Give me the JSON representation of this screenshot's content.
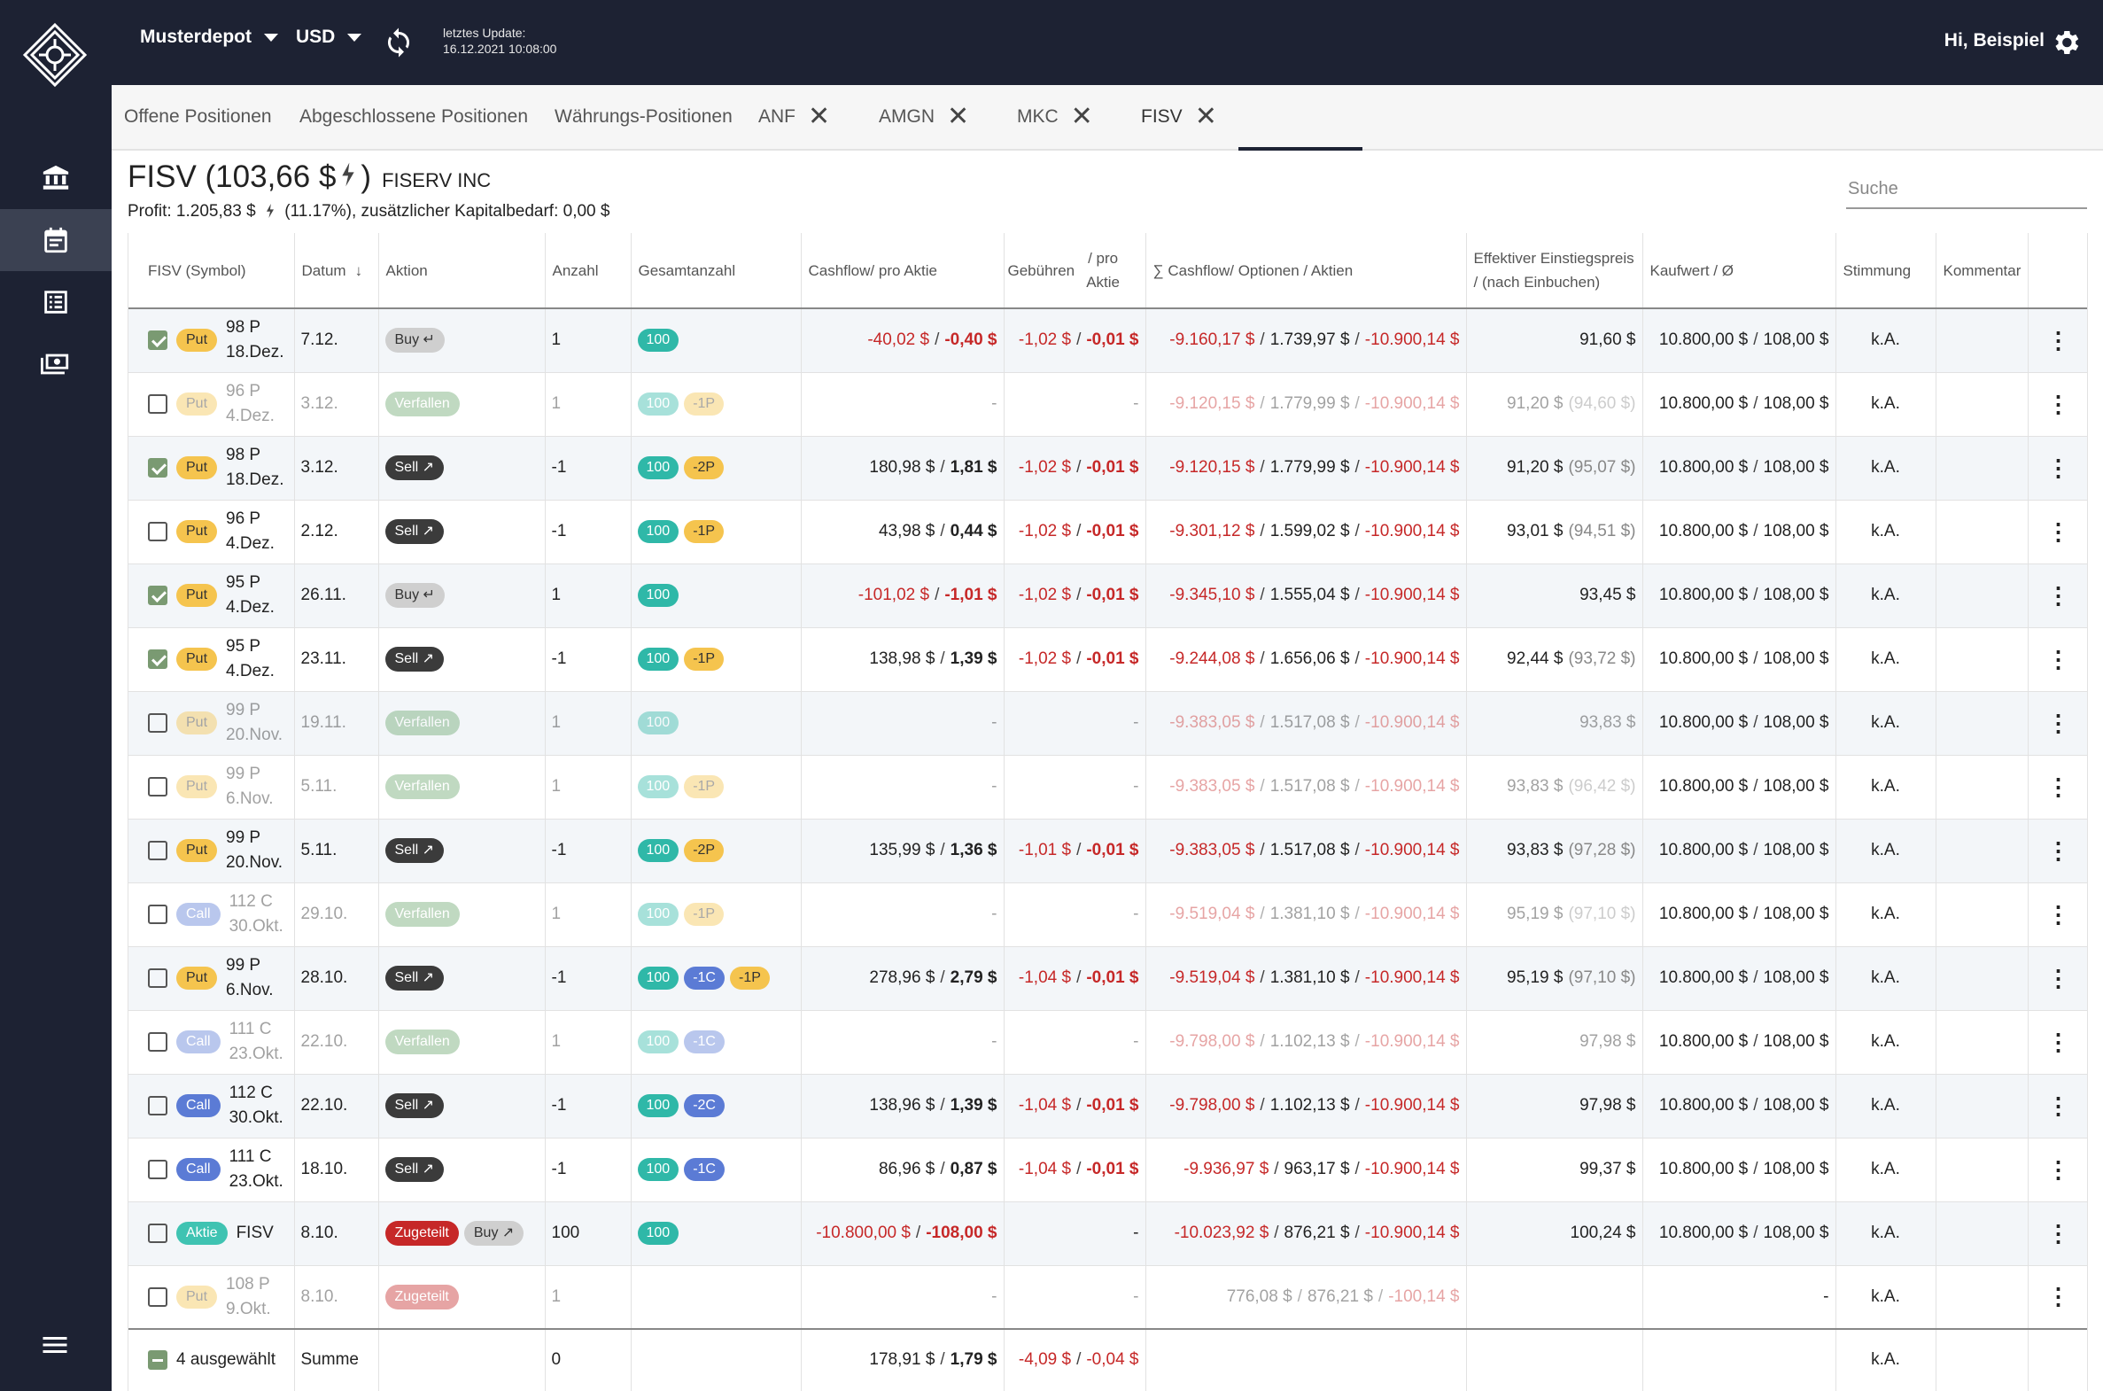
{
  "topbar": {
    "depot": "Musterdepot",
    "currency": "USD",
    "update_label": "letztes Update:",
    "update_time": "16.12.2021 10:08:00",
    "greeting": "Hi, Beispiel"
  },
  "tabs": [
    {
      "label": "Offene Positionen"
    },
    {
      "label": "Abgeschlossene Positionen"
    },
    {
      "label": "Währungs-Positionen"
    },
    {
      "label": "ANF"
    },
    {
      "label": "AMGN"
    },
    {
      "label": "MKC"
    },
    {
      "label": "FISV"
    }
  ],
  "header": {
    "symbol_price": "FISV (103,66 $",
    "paren_close": ")",
    "company": "FISERV INC",
    "profit_prefix": "Profit: 1.205,83 $",
    "profit_suffix": "(11.17%), zusätzlicher Kapitalbedarf: 0,00 $",
    "search_placeholder": "Suche"
  },
  "columns": {
    "symbol": "FISV (Symbol)",
    "datum": "Datum",
    "aktion": "Aktion",
    "anzahl": "Anzahl",
    "gesamtanzahl": "Gesamtanzahl",
    "cashflow": "Cashflow/ pro Aktie",
    "gebuehren_a": "Gebühren",
    "gebuehren_b": "/ pro Aktie",
    "sum_cashflow": "∑ Cashflow/ Optionen / Aktien",
    "effektiv": "Effektiver Einstiegspreis / (nach Einbuchen)",
    "kaufwert": "Kaufwert / Ø",
    "stimmung": "Stimmung",
    "kommentar": "Kommentar"
  },
  "rows": [
    {
      "checked": true,
      "faded": false,
      "type": "Put",
      "l1": "98 P",
      "l2": "18.Dez.",
      "date": "7.12.",
      "actions": [
        {
          "k": "buy",
          "t": "Buy ↵"
        }
      ],
      "qty": "1",
      "counts": [
        {
          "c": "teal",
          "t": "100"
        }
      ],
      "cf": "-40,02 $",
      "cf_neg": true,
      "cfp": "-0,40 $",
      "cfp_neg": true,
      "fee": "-1,02 $",
      "feep": "-0,01 $",
      "s1": "-9.160,17 $",
      "s1_neg": true,
      "s2": "1.739,97 $",
      "s3": "-10.900,14 $",
      "eff": "91,60 $",
      "eff2": "",
      "kw": "10.800,00 $",
      "kw2": "108,00 $",
      "stim": "k.A."
    },
    {
      "checked": false,
      "faded": true,
      "type": "Put",
      "l1": "96 P",
      "l2": "4.Dez.",
      "date": "3.12.",
      "actions": [
        {
          "k": "verf",
          "t": "Verfallen"
        }
      ],
      "qty": "1",
      "counts": [
        {
          "c": "teal",
          "t": "100"
        },
        {
          "c": "yel",
          "t": "-1P"
        }
      ],
      "cf": "-",
      "cf_neg": false,
      "cfp": "",
      "cfp_neg": false,
      "fee": "-",
      "feep": "",
      "s1": "-9.120,15 $",
      "s1_neg": true,
      "s2": "1.779,99 $",
      "s3": "-10.900,14 $",
      "eff": "91,20 $",
      "eff2": "(94,60 $)",
      "kw": "10.800,00 $",
      "kw2": "108,00 $",
      "stim": "k.A."
    },
    {
      "checked": true,
      "faded": false,
      "type": "Put",
      "l1": "98 P",
      "l2": "18.Dez.",
      "date": "3.12.",
      "actions": [
        {
          "k": "sell",
          "t": "Sell ↗"
        }
      ],
      "qty": "-1",
      "counts": [
        {
          "c": "teal",
          "t": "100"
        },
        {
          "c": "yel",
          "t": "-2P"
        }
      ],
      "cf": "180,98 $",
      "cf_neg": false,
      "cfp": "1,81 $",
      "cfp_neg": false,
      "fee": "-1,02 $",
      "feep": "-0,01 $",
      "s1": "-9.120,15 $",
      "s1_neg": true,
      "s2": "1.779,99 $",
      "s3": "-10.900,14 $",
      "eff": "91,20 $",
      "eff2": "(95,07 $)",
      "kw": "10.800,00 $",
      "kw2": "108,00 $",
      "stim": "k.A."
    },
    {
      "checked": false,
      "faded": false,
      "type": "Put",
      "l1": "96 P",
      "l2": "4.Dez.",
      "date": "2.12.",
      "actions": [
        {
          "k": "sell",
          "t": "Sell ↗"
        }
      ],
      "qty": "-1",
      "counts": [
        {
          "c": "teal",
          "t": "100"
        },
        {
          "c": "yel",
          "t": "-1P"
        }
      ],
      "cf": "43,98 $",
      "cf_neg": false,
      "cfp": "0,44 $",
      "cfp_neg": false,
      "fee": "-1,02 $",
      "feep": "-0,01 $",
      "s1": "-9.301,12 $",
      "s1_neg": true,
      "s2": "1.599,02 $",
      "s3": "-10.900,14 $",
      "eff": "93,01 $",
      "eff2": "(94,51 $)",
      "kw": "10.800,00 $",
      "kw2": "108,00 $",
      "stim": "k.A."
    },
    {
      "checked": true,
      "faded": false,
      "type": "Put",
      "l1": "95 P",
      "l2": "4.Dez.",
      "date": "26.11.",
      "actions": [
        {
          "k": "buy",
          "t": "Buy ↵"
        }
      ],
      "qty": "1",
      "counts": [
        {
          "c": "teal",
          "t": "100"
        }
      ],
      "cf": "-101,02 $",
      "cf_neg": true,
      "cfp": "-1,01 $",
      "cfp_neg": true,
      "fee": "-1,02 $",
      "feep": "-0,01 $",
      "s1": "-9.345,10 $",
      "s1_neg": true,
      "s2": "1.555,04 $",
      "s3": "-10.900,14 $",
      "eff": "93,45 $",
      "eff2": "",
      "kw": "10.800,00 $",
      "kw2": "108,00 $",
      "stim": "k.A."
    },
    {
      "checked": true,
      "faded": false,
      "type": "Put",
      "l1": "95 P",
      "l2": "4.Dez.",
      "date": "23.11.",
      "actions": [
        {
          "k": "sell",
          "t": "Sell ↗"
        }
      ],
      "qty": "-1",
      "counts": [
        {
          "c": "teal",
          "t": "100"
        },
        {
          "c": "yel",
          "t": "-1P"
        }
      ],
      "cf": "138,98 $",
      "cf_neg": false,
      "cfp": "1,39 $",
      "cfp_neg": false,
      "fee": "-1,02 $",
      "feep": "-0,01 $",
      "s1": "-9.244,08 $",
      "s1_neg": true,
      "s2": "1.656,06 $",
      "s3": "-10.900,14 $",
      "eff": "92,44 $",
      "eff2": "(93,72 $)",
      "kw": "10.800,00 $",
      "kw2": "108,00 $",
      "stim": "k.A."
    },
    {
      "checked": false,
      "faded": true,
      "type": "Put",
      "l1": "99 P",
      "l2": "20.Nov.",
      "date": "19.11.",
      "actions": [
        {
          "k": "verf",
          "t": "Verfallen"
        }
      ],
      "qty": "1",
      "counts": [
        {
          "c": "teal",
          "t": "100"
        }
      ],
      "cf": "-",
      "cf_neg": false,
      "cfp": "",
      "cfp_neg": false,
      "fee": "-",
      "feep": "",
      "s1": "-9.383,05 $",
      "s1_neg": true,
      "s2": "1.517,08 $",
      "s3": "-10.900,14 $",
      "eff": "93,83 $",
      "eff2": "",
      "kw": "10.800,00 $",
      "kw2": "108,00 $",
      "stim": "k.A."
    },
    {
      "checked": false,
      "faded": true,
      "type": "Put",
      "l1": "99 P",
      "l2": "6.Nov.",
      "date": "5.11.",
      "actions": [
        {
          "k": "verf",
          "t": "Verfallen"
        }
      ],
      "qty": "1",
      "counts": [
        {
          "c": "teal",
          "t": "100"
        },
        {
          "c": "yel",
          "t": "-1P"
        }
      ],
      "cf": "-",
      "cf_neg": false,
      "cfp": "",
      "cfp_neg": false,
      "fee": "-",
      "feep": "",
      "s1": "-9.383,05 $",
      "s1_neg": true,
      "s2": "1.517,08 $",
      "s3": "-10.900,14 $",
      "eff": "93,83 $",
      "eff2": "(96,42 $)",
      "kw": "10.800,00 $",
      "kw2": "108,00 $",
      "stim": "k.A."
    },
    {
      "checked": false,
      "faded": false,
      "type": "Put",
      "l1": "99 P",
      "l2": "20.Nov.",
      "date": "5.11.",
      "actions": [
        {
          "k": "sell",
          "t": "Sell ↗"
        }
      ],
      "qty": "-1",
      "counts": [
        {
          "c": "teal",
          "t": "100"
        },
        {
          "c": "yel",
          "t": "-2P"
        }
      ],
      "cf": "135,99 $",
      "cf_neg": false,
      "cfp": "1,36 $",
      "cfp_neg": false,
      "fee": "-1,01 $",
      "feep": "-0,01 $",
      "s1": "-9.383,05 $",
      "s1_neg": true,
      "s2": "1.517,08 $",
      "s3": "-10.900,14 $",
      "eff": "93,83 $",
      "eff2": "(97,28 $)",
      "kw": "10.800,00 $",
      "kw2": "108,00 $",
      "stim": "k.A."
    },
    {
      "checked": false,
      "faded": true,
      "type": "Call",
      "l1": "112 C",
      "l2": "30.Okt.",
      "date": "29.10.",
      "actions": [
        {
          "k": "verf",
          "t": "Verfallen"
        }
      ],
      "qty": "1",
      "counts": [
        {
          "c": "teal",
          "t": "100"
        },
        {
          "c": "yel",
          "t": "-1P"
        }
      ],
      "cf": "-",
      "cf_neg": false,
      "cfp": "",
      "cfp_neg": false,
      "fee": "-",
      "feep": "",
      "s1": "-9.519,04 $",
      "s1_neg": true,
      "s2": "1.381,10 $",
      "s3": "-10.900,14 $",
      "eff": "95,19 $",
      "eff2": "(97,10 $)",
      "kw": "10.800,00 $",
      "kw2": "108,00 $",
      "stim": "k.A."
    },
    {
      "checked": false,
      "faded": false,
      "type": "Put",
      "l1": "99 P",
      "l2": "6.Nov.",
      "date": "28.10.",
      "actions": [
        {
          "k": "sell",
          "t": "Sell ↗"
        }
      ],
      "qty": "-1",
      "counts": [
        {
          "c": "teal",
          "t": "100"
        },
        {
          "c": "blue",
          "t": "-1C"
        },
        {
          "c": "yel",
          "t": "-1P"
        }
      ],
      "cf": "278,96 $",
      "cf_neg": false,
      "cfp": "2,79 $",
      "cfp_neg": false,
      "fee": "-1,04 $",
      "feep": "-0,01 $",
      "s1": "-9.519,04 $",
      "s1_neg": true,
      "s2": "1.381,10 $",
      "s3": "-10.900,14 $",
      "eff": "95,19 $",
      "eff2": "(97,10 $)",
      "kw": "10.800,00 $",
      "kw2": "108,00 $",
      "stim": "k.A."
    },
    {
      "checked": false,
      "faded": true,
      "type": "Call",
      "l1": "111 C",
      "l2": "23.Okt.",
      "date": "22.10.",
      "actions": [
        {
          "k": "verf",
          "t": "Verfallen"
        }
      ],
      "qty": "1",
      "counts": [
        {
          "c": "teal",
          "t": "100"
        },
        {
          "c": "blue",
          "t": "-1C"
        }
      ],
      "cf": "-",
      "cf_neg": false,
      "cfp": "",
      "cfp_neg": false,
      "fee": "-",
      "feep": "",
      "s1": "-9.798,00 $",
      "s1_neg": true,
      "s2": "1.102,13 $",
      "s3": "-10.900,14 $",
      "eff": "97,98 $",
      "eff2": "",
      "kw": "10.800,00 $",
      "kw2": "108,00 $",
      "stim": "k.A."
    },
    {
      "checked": false,
      "faded": false,
      "type": "Call",
      "l1": "112 C",
      "l2": "30.Okt.",
      "date": "22.10.",
      "actions": [
        {
          "k": "sell",
          "t": "Sell ↗"
        }
      ],
      "qty": "-1",
      "counts": [
        {
          "c": "teal",
          "t": "100"
        },
        {
          "c": "blue",
          "t": "-2C"
        }
      ],
      "cf": "138,96 $",
      "cf_neg": false,
      "cfp": "1,39 $",
      "cfp_neg": false,
      "fee": "-1,04 $",
      "feep": "-0,01 $",
      "s1": "-9.798,00 $",
      "s1_neg": true,
      "s2": "1.102,13 $",
      "s3": "-10.900,14 $",
      "eff": "97,98 $",
      "eff2": "",
      "kw": "10.800,00 $",
      "kw2": "108,00 $",
      "stim": "k.A."
    },
    {
      "checked": false,
      "faded": false,
      "type": "Call",
      "l1": "111 C",
      "l2": "23.Okt.",
      "date": "18.10.",
      "actions": [
        {
          "k": "sell",
          "t": "Sell ↗"
        }
      ],
      "qty": "-1",
      "counts": [
        {
          "c": "teal",
          "t": "100"
        },
        {
          "c": "blue",
          "t": "-1C"
        }
      ],
      "cf": "86,96 $",
      "cf_neg": false,
      "cfp": "0,87 $",
      "cfp_neg": false,
      "fee": "-1,04 $",
      "feep": "-0,01 $",
      "s1": "-9.936,97 $",
      "s1_neg": true,
      "s2": "963,17 $",
      "s3": "-10.900,14 $",
      "eff": "99,37 $",
      "eff2": "",
      "kw": "10.800,00 $",
      "kw2": "108,00 $",
      "stim": "k.A."
    },
    {
      "checked": false,
      "faded": false,
      "type": "Aktie",
      "l1": "FISV",
      "l2": "",
      "date": "8.10.",
      "actions": [
        {
          "k": "zug",
          "t": "Zugeteilt"
        },
        {
          "k": "buy",
          "t": "Buy ↗"
        }
      ],
      "qty": "100",
      "counts": [
        {
          "c": "teal",
          "t": "100"
        }
      ],
      "cf": "-10.800,00 $",
      "cf_neg": true,
      "cfp": "-108,00 $",
      "cfp_neg": true,
      "fee": "-",
      "feep": "",
      "s1": "-10.023,92 $",
      "s1_neg": true,
      "s2": "876,21 $",
      "s3": "-10.900,14 $",
      "eff": "100,24 $",
      "eff2": "",
      "kw": "10.800,00 $",
      "kw2": "108,00 $",
      "stim": "k.A."
    },
    {
      "checked": false,
      "faded": true,
      "type": "Put",
      "l1": "108 P",
      "l2": "9.Okt.",
      "date": "8.10.",
      "actions": [
        {
          "k": "zug",
          "t": "Zugeteilt"
        }
      ],
      "qty": "1",
      "counts": [],
      "cf": "-",
      "cf_neg": false,
      "cfp": "",
      "cfp_neg": false,
      "fee": "-",
      "feep": "",
      "s1": "776,08 $",
      "s1_neg": false,
      "s2": "876,21 $",
      "s3": "-100,14 $",
      "eff": "",
      "eff2": "",
      "kw": "-",
      "kw2": "",
      "stim": "k.A."
    }
  ],
  "summary": {
    "selected": "4 ausgewählt",
    "label": "Summe",
    "qty": "0",
    "cf": "178,91 $",
    "cfp": "1,79 $",
    "fee": "-4,09 $",
    "feep": "-0,04 $",
    "stim": "k.A."
  },
  "colors": {
    "navy": "#1d2233",
    "red": "#c62828",
    "teal": "#2fb8a8",
    "yellow": "#f5c44e",
    "blue": "#5b7bd5",
    "green": "#7a9a72"
  }
}
